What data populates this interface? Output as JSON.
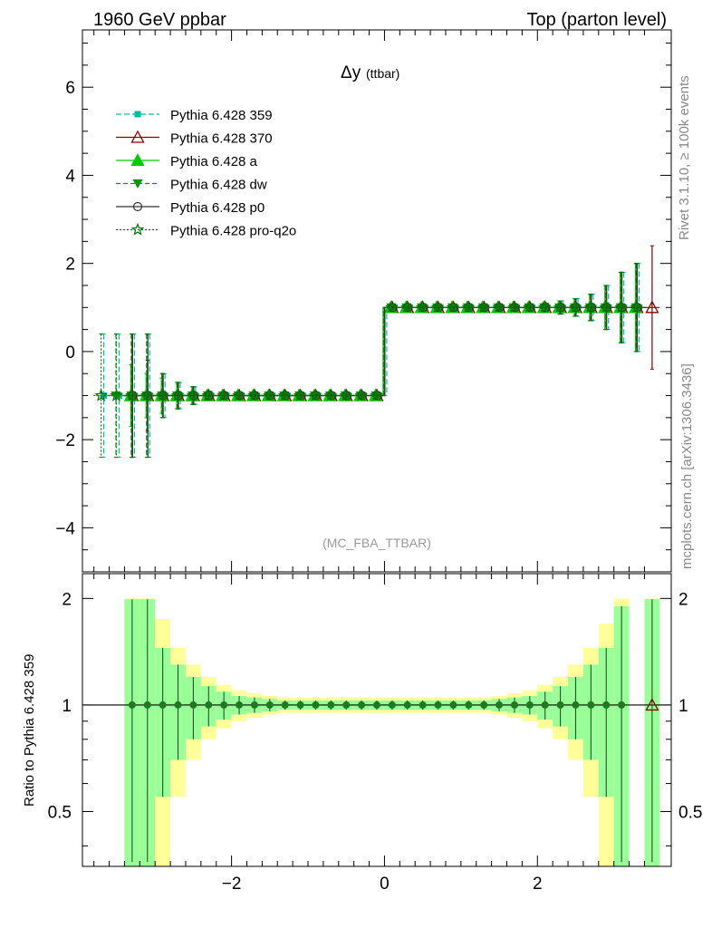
{
  "header": {
    "left": "1960 GeV ppbar",
    "right": "Top (parton level)"
  },
  "side_text": {
    "upper": "Rivet 3.1.10, ≥ 100k events",
    "lower": "mcplots.cern.ch [arXiv:1306.3436]"
  },
  "chart_data": [
    {
      "type": "line",
      "title": "Δy",
      "title_suffix": "(ttbar)",
      "watermark": "(MC_FBA_TTBAR)",
      "xlim": [
        -3.95,
        3.75
      ],
      "ylim": [
        -5.0,
        7.3
      ],
      "yticks": [
        -4,
        -2,
        0,
        2,
        4,
        6
      ],
      "xticks": [
        -2,
        0,
        2
      ],
      "legend_position": "top-left",
      "bin_width": 0.2,
      "x": [
        -3.7,
        -3.5,
        -3.3,
        -3.1,
        -2.9,
        -2.7,
        -2.5,
        -2.3,
        -2.1,
        -1.9,
        -1.7,
        -1.5,
        -1.3,
        -1.1,
        -0.9,
        -0.7,
        -0.5,
        -0.3,
        -0.1,
        0.1,
        0.3,
        0.5,
        0.7,
        0.9,
        1.1,
        1.3,
        1.5,
        1.7,
        1.9,
        2.1,
        2.3,
        2.5,
        2.7,
        2.9,
        3.1,
        3.3,
        3.5
      ],
      "series": [
        {
          "name": "Pythia 6.428 359",
          "color": "#00bfa0",
          "dash": "6,3",
          "marker": "square",
          "values": [
            -1,
            -1,
            -1,
            -1,
            -1,
            -1,
            -1,
            -1,
            -1,
            -1,
            -1,
            -1,
            -1,
            -1,
            -1,
            -1,
            -1,
            -1,
            -1,
            1,
            1,
            1,
            1,
            1,
            1,
            1,
            1,
            1,
            1,
            1,
            1,
            1,
            1,
            1,
            1,
            1,
            null
          ],
          "err": [
            1.4,
            1.4,
            1.4,
            1.4,
            0.5,
            0.3,
            0.2,
            0.1,
            0.07,
            0.05,
            0.05,
            0.04,
            0.04,
            0.04,
            0.04,
            0.04,
            0.04,
            0.04,
            0.04,
            0.04,
            0.04,
            0.04,
            0.04,
            0.04,
            0.04,
            0.04,
            0.05,
            0.06,
            0.08,
            0.1,
            0.15,
            0.2,
            0.3,
            0.5,
            0.8,
            1.0,
            null
          ]
        },
        {
          "name": "Pythia 6.428 370",
          "color": "#8b0000",
          "dash": "",
          "marker": "triangle-open",
          "values": [
            null,
            null,
            -1,
            -1,
            -1,
            -1,
            -1,
            -1,
            -1,
            -1,
            -1,
            -1,
            -1,
            -1,
            -1,
            -1,
            -1,
            -1,
            -1,
            1,
            1,
            1,
            1,
            1,
            1,
            1,
            1,
            1,
            1,
            1,
            1,
            1,
            1,
            1,
            1,
            1,
            1
          ],
          "err": [
            null,
            null,
            1.4,
            0.8,
            0.5,
            0.3,
            0.2,
            0.1,
            0.07,
            0.05,
            0.05,
            0.04,
            0.04,
            0.04,
            0.04,
            0.04,
            0.04,
            0.04,
            0.04,
            0.04,
            0.04,
            0.04,
            0.04,
            0.04,
            0.04,
            0.04,
            0.05,
            0.06,
            0.08,
            0.1,
            0.15,
            0.2,
            0.3,
            0.5,
            0.8,
            1.0,
            1.4
          ]
        },
        {
          "name": "Pythia 6.428 a",
          "color": "#00cc00",
          "dash": "",
          "marker": "triangle",
          "values": [
            null,
            null,
            -1,
            -1,
            -1,
            -1,
            -1,
            -1,
            -1,
            -1,
            -1,
            -1,
            -1,
            -1,
            -1,
            -1,
            -1,
            -1,
            -1,
            1,
            1,
            1,
            1,
            1,
            1,
            1,
            1,
            1,
            1,
            1,
            1,
            1,
            1,
            1,
            1,
            1,
            null
          ],
          "err": [
            null,
            null,
            0.7,
            0.5,
            0.4,
            0.3,
            0.2,
            0.1,
            0.07,
            0.05,
            0.05,
            0.04,
            0.04,
            0.04,
            0.04,
            0.04,
            0.04,
            0.04,
            0.04,
            0.04,
            0.04,
            0.04,
            0.04,
            0.04,
            0.04,
            0.04,
            0.05,
            0.06,
            0.08,
            0.1,
            0.15,
            0.2,
            0.3,
            0.5,
            0.8,
            1.0,
            null
          ]
        },
        {
          "name": "Pythia 6.428 dw",
          "color": "#009900",
          "dash": "5,3",
          "marker": "triangle-down",
          "values": [
            null,
            -1,
            -1,
            -1,
            -1,
            -1,
            -1,
            -1,
            -1,
            -1,
            -1,
            -1,
            -1,
            -1,
            -1,
            -1,
            -1,
            -1,
            -1,
            1,
            1,
            1,
            1,
            1,
            1,
            1,
            1,
            1,
            1,
            1,
            1,
            1,
            1,
            1,
            1,
            1,
            null
          ],
          "err": [
            null,
            1.4,
            1.4,
            1.4,
            0.5,
            0.3,
            0.2,
            0.1,
            0.07,
            0.05,
            0.05,
            0.04,
            0.04,
            0.04,
            0.04,
            0.04,
            0.04,
            0.04,
            0.04,
            0.04,
            0.04,
            0.04,
            0.04,
            0.04,
            0.04,
            0.04,
            0.05,
            0.06,
            0.08,
            0.1,
            0.15,
            0.2,
            0.3,
            0.5,
            0.8,
            1.0,
            null
          ]
        },
        {
          "name": "Pythia 6.428 p0",
          "color": "#333333",
          "dash": "",
          "marker": "circle-open",
          "values": [
            null,
            null,
            -1,
            -1,
            -1,
            -1,
            -1,
            -1,
            -1,
            -1,
            -1,
            -1,
            -1,
            -1,
            -1,
            -1,
            -1,
            -1,
            -1,
            1,
            1,
            1,
            1,
            1,
            1,
            1,
            1,
            1,
            1,
            1,
            1,
            1,
            1,
            1,
            1,
            1,
            null
          ],
          "err": [
            null,
            null,
            1.4,
            1.4,
            0.5,
            0.3,
            0.2,
            0.1,
            0.07,
            0.05,
            0.05,
            0.04,
            0.04,
            0.04,
            0.04,
            0.04,
            0.04,
            0.04,
            0.04,
            0.04,
            0.04,
            0.04,
            0.04,
            0.04,
            0.04,
            0.04,
            0.05,
            0.06,
            0.08,
            0.1,
            0.15,
            0.2,
            0.3,
            0.5,
            0.8,
            1.0,
            null
          ]
        },
        {
          "name": "Pythia 6.428 pro-q2o",
          "color": "#007700",
          "dash": "2,2",
          "marker": "star",
          "values": [
            -1,
            -1,
            -1,
            -1,
            -1,
            -1,
            -1,
            -1,
            -1,
            -1,
            -1,
            -1,
            -1,
            -1,
            -1,
            -1,
            -1,
            -1,
            -1,
            1,
            1,
            1,
            1,
            1,
            1,
            1,
            1,
            1,
            1,
            1,
            1,
            1,
            1,
            1,
            1,
            1,
            null
          ],
          "err": [
            1.4,
            1.4,
            1.4,
            1.4,
            0.5,
            0.3,
            0.2,
            0.1,
            0.07,
            0.05,
            0.05,
            0.04,
            0.04,
            0.04,
            0.04,
            0.04,
            0.04,
            0.04,
            0.04,
            0.04,
            0.04,
            0.04,
            0.04,
            0.04,
            0.04,
            0.04,
            0.05,
            0.06,
            0.08,
            0.1,
            0.15,
            0.2,
            0.3,
            0.5,
            0.8,
            1.0,
            null
          ]
        }
      ]
    },
    {
      "type": "line",
      "ylabel": "Ratio to Pythia 6.428 359",
      "xlim": [
        -3.95,
        3.75
      ],
      "ylim": [
        0.35,
        2.35
      ],
      "yticks": [
        0.5,
        1,
        2
      ],
      "xticks": [
        -2,
        0,
        2
      ],
      "reference": 1,
      "band_x": [
        -3.3,
        -3.1,
        -2.9,
        -2.7,
        -2.5,
        -2.3,
        -2.1,
        -1.9,
        -1.7,
        -1.5,
        -1.3,
        -1.1,
        -0.9,
        -0.7,
        -0.5,
        -0.3,
        -0.1,
        0.1,
        0.3,
        0.5,
        0.7,
        0.9,
        1.1,
        1.3,
        1.5,
        1.7,
        1.9,
        2.1,
        2.3,
        2.5,
        2.7,
        2.9,
        3.1,
        3.5
      ],
      "band_green": [
        0.99,
        0.99,
        0.45,
        0.3,
        0.2,
        0.13,
        0.09,
        0.06,
        0.05,
        0.04,
        0.03,
        0.03,
        0.03,
        0.03,
        0.03,
        0.03,
        0.03,
        0.03,
        0.03,
        0.03,
        0.03,
        0.03,
        0.03,
        0.03,
        0.04,
        0.05,
        0.06,
        0.09,
        0.13,
        0.2,
        0.3,
        0.45,
        0.9,
        0.99
      ],
      "band_yellow": [
        1.0,
        1.0,
        0.75,
        0.45,
        0.3,
        0.2,
        0.14,
        0.1,
        0.08,
        0.06,
        0.05,
        0.05,
        0.05,
        0.05,
        0.05,
        0.05,
        0.05,
        0.05,
        0.05,
        0.05,
        0.05,
        0.05,
        0.05,
        0.05,
        0.06,
        0.08,
        0.1,
        0.14,
        0.2,
        0.3,
        0.45,
        0.7,
        1.0,
        1.0
      ],
      "ratio_values": 1,
      "ratio_err_example": [
        1.0,
        1.0,
        0.5,
        0.2
      ]
    }
  ]
}
